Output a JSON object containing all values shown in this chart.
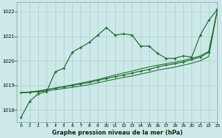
{
  "title": "Graphe pression niveau de la mer (hPa)",
  "background_color": "#cce8e8",
  "grid_color": "#aacccc",
  "line_color": "#1a6e2a",
  "xlim": [
    -0.5,
    23
  ],
  "ylim": [
    1017.5,
    1022.4
  ],
  "yticks": [
    1018,
    1019,
    1020,
    1021,
    1022
  ],
  "xticks": [
    0,
    1,
    2,
    3,
    4,
    5,
    6,
    7,
    8,
    9,
    10,
    11,
    12,
    13,
    14,
    15,
    16,
    17,
    18,
    19,
    20,
    21,
    22,
    23
  ],
  "series1": [
    1017.7,
    1018.35,
    1018.65,
    1018.75,
    1019.55,
    1019.7,
    1020.35,
    1020.55,
    1020.75,
    1021.05,
    1021.35,
    1021.05,
    1021.1,
    1021.05,
    1020.6,
    1020.6,
    1020.3,
    1020.1,
    1020.1,
    1020.2,
    1020.15,
    1021.05,
    1021.65,
    1022.1
  ],
  "series2": [
    1018.7,
    1018.72,
    1018.75,
    1018.82,
    1018.88,
    1018.94,
    1019.0,
    1019.06,
    1019.12,
    1019.2,
    1019.28,
    1019.35,
    1019.42,
    1019.5,
    1019.58,
    1019.65,
    1019.75,
    1019.82,
    1019.88,
    1019.95,
    1020.05,
    1020.15,
    1020.35,
    1022.05
  ],
  "series3": [
    1018.7,
    1018.72,
    1018.74,
    1018.77,
    1018.82,
    1018.87,
    1018.92,
    1018.97,
    1019.03,
    1019.1,
    1019.18,
    1019.25,
    1019.32,
    1019.38,
    1019.46,
    1019.53,
    1019.62,
    1019.68,
    1019.74,
    1019.82,
    1019.9,
    1020.0,
    1020.18,
    1022.05
  ],
  "series4": [
    1018.7,
    1018.73,
    1018.77,
    1018.83,
    1018.89,
    1018.95,
    1019.02,
    1019.09,
    1019.16,
    1019.24,
    1019.33,
    1019.42,
    1019.5,
    1019.58,
    1019.67,
    1019.75,
    1019.82,
    1019.88,
    1019.94,
    1020.01,
    1020.1,
    1020.2,
    1020.38,
    1022.05
  ]
}
